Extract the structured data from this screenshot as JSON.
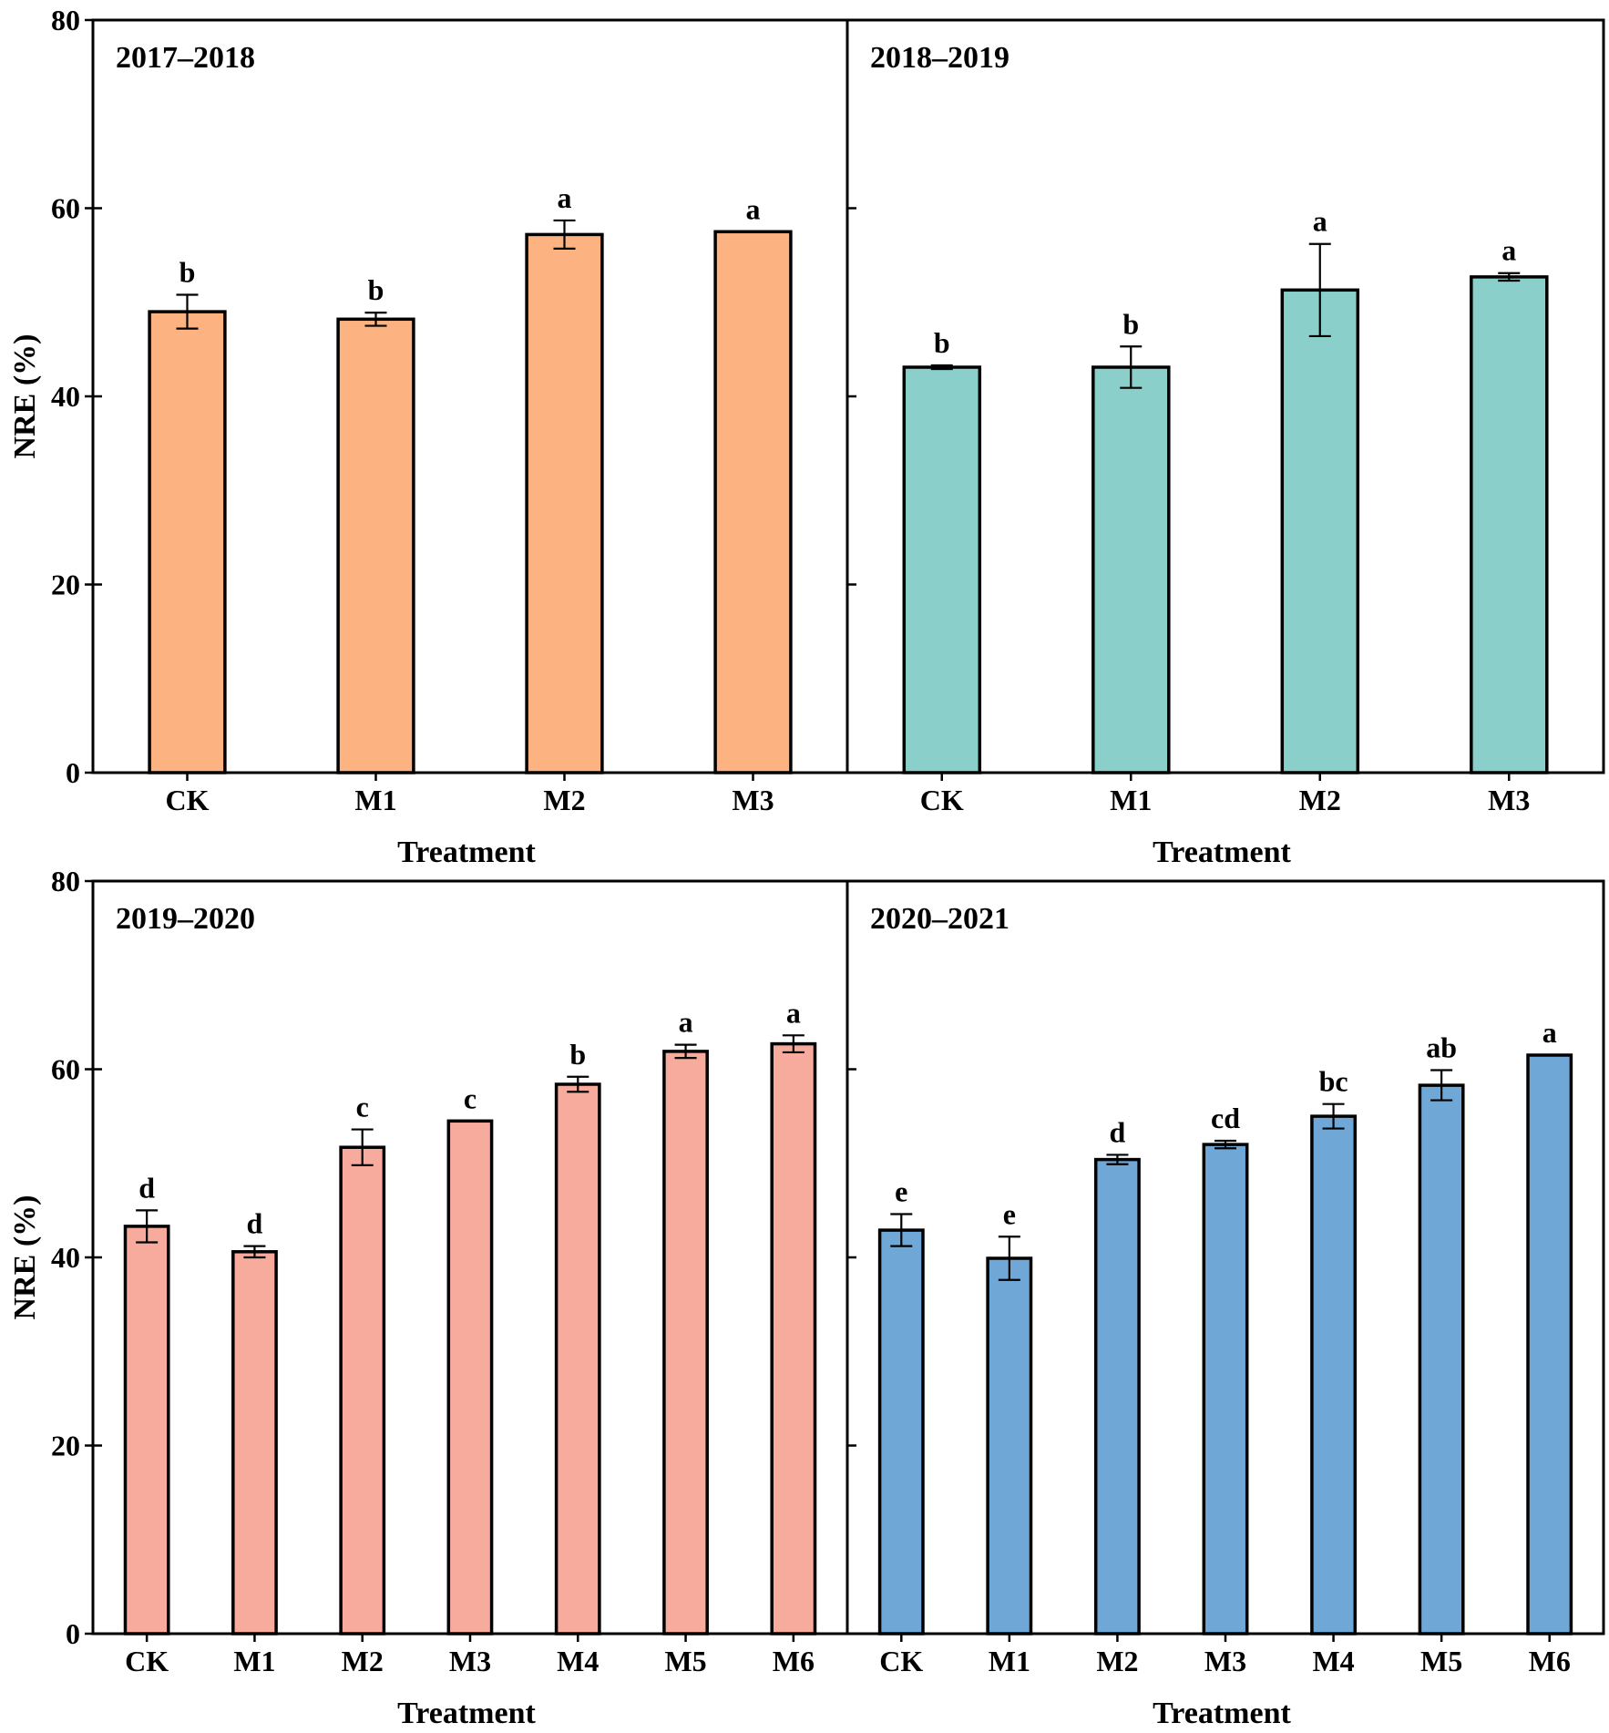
{
  "figure": {
    "ylabel": "NRE (%)",
    "xlabel": "Treatment",
    "ylim": [
      0,
      80
    ],
    "yticks": [
      0,
      20,
      40,
      60,
      80
    ]
  },
  "chart_data": [
    {
      "type": "bar",
      "title": "2017–2018",
      "xlabel": "Treatment",
      "ylabel": "NRE (%)",
      "ylim": [
        0,
        80
      ],
      "color": "#FDB381",
      "categories": [
        "CK",
        "M1",
        "M2",
        "M3"
      ],
      "values": [
        49.0,
        48.2,
        57.2,
        57.5
      ],
      "errors": [
        1.8,
        0.7,
        1.5,
        0.0
      ],
      "significance": [
        "b",
        "b",
        "a",
        "a"
      ]
    },
    {
      "type": "bar",
      "title": "2018–2019",
      "xlabel": "Treatment",
      "ylabel": "NRE (%)",
      "ylim": [
        0,
        80
      ],
      "color": "#8ACFC9",
      "categories": [
        "CK",
        "M1",
        "M2",
        "M3"
      ],
      "values": [
        43.1,
        43.1,
        51.3,
        52.7
      ],
      "errors": [
        0.2,
        2.2,
        4.9,
        0.4
      ],
      "significance": [
        "b",
        "b",
        "a",
        "a"
      ]
    },
    {
      "type": "bar",
      "title": "2019–2020",
      "xlabel": "Treatment",
      "ylabel": "NRE (%)",
      "ylim": [
        0,
        80
      ],
      "color": "#F7AB9C",
      "categories": [
        "CK",
        "M1",
        "M2",
        "M3",
        "M4",
        "M5",
        "M6"
      ],
      "values": [
        43.3,
        40.6,
        51.7,
        54.5,
        58.4,
        61.9,
        62.7
      ],
      "errors": [
        1.7,
        0.6,
        1.9,
        0.0,
        0.8,
        0.7,
        0.9
      ],
      "significance": [
        "d",
        "d",
        "c",
        "c",
        "b",
        "a",
        "a"
      ]
    },
    {
      "type": "bar",
      "title": "2020–2021",
      "xlabel": "Treatment",
      "ylabel": "NRE (%)",
      "ylim": [
        0,
        80
      ],
      "color": "#6FA7D6",
      "categories": [
        "CK",
        "M1",
        "M2",
        "M3",
        "M4",
        "M5",
        "M6"
      ],
      "values": [
        42.9,
        39.9,
        50.4,
        52.0,
        55.0,
        58.3,
        61.5
      ],
      "errors": [
        1.7,
        2.3,
        0.5,
        0.4,
        1.3,
        1.6,
        0.0
      ],
      "significance": [
        "e",
        "e",
        "d",
        "cd",
        "bc",
        "ab",
        "a"
      ]
    }
  ]
}
